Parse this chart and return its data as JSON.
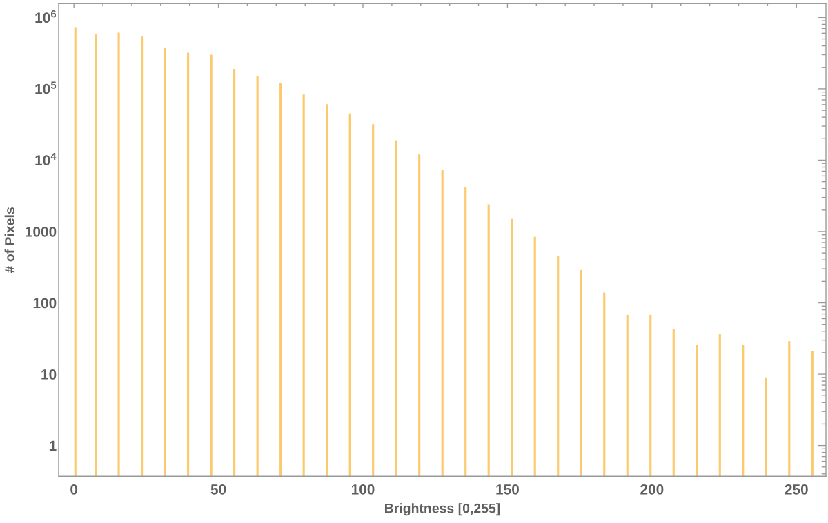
{
  "chart_data": {
    "type": "bar",
    "xlabel": "Brightness [0,255]",
    "ylabel": "# of Pixels",
    "log": true,
    "color": "#fbc96e",
    "x": [
      0.5,
      7.5,
      15.5,
      23.5,
      31.5,
      39.5,
      47.5,
      55.5,
      63.5,
      71.5,
      79.5,
      87.5,
      95.5,
      103.5,
      111.5,
      119.5,
      127.5,
      135.5,
      143.5,
      151.5,
      159.5,
      167.5,
      175.5,
      183.5,
      191.5,
      199.5,
      207.5,
      215.5,
      223.5,
      231.5,
      239.5,
      247.5,
      255.5
    ],
    "values": [
      730000,
      580000,
      610000,
      550000,
      370000,
      320000,
      300000,
      190000,
      150000,
      120000,
      83000,
      61000,
      45000,
      32000,
      19000,
      12000,
      7300,
      4200,
      2400,
      1500,
      840,
      450,
      290,
      140,
      68,
      68,
      43,
      26,
      37,
      26,
      9,
      29,
      21
    ],
    "xlim": [
      -5.3,
      260.2
    ],
    "xticks": [
      0,
      50,
      100,
      150,
      200,
      250,
      {
        "value": 10,
        "label": null
      },
      {
        "value": 20,
        "label": null
      },
      {
        "value": 30,
        "label": null
      },
      {
        "value": 40,
        "label": null
      },
      {
        "value": 60,
        "label": null
      },
      {
        "value": 70,
        "label": null
      },
      {
        "value": 80,
        "label": null
      },
      {
        "value": 90,
        "label": null
      },
      {
        "value": 110,
        "label": null
      },
      {
        "value": 120,
        "label": null
      },
      {
        "value": 130,
        "label": null
      },
      {
        "value": 140,
        "label": null
      },
      {
        "value": 160,
        "label": null
      },
      {
        "value": 170,
        "label": null
      },
      {
        "value": 180,
        "label": null
      },
      {
        "value": 190,
        "label": null
      },
      {
        "value": 210,
        "label": null
      },
      {
        "value": 220,
        "label": null
      },
      {
        "value": 230,
        "label": null
      },
      {
        "value": 240,
        "label": null
      }
    ],
    "ylim": [
      0.37,
      1560000
    ],
    "yticks": [
      1,
      10,
      100,
      1000,
      {
        "value": 10000,
        "label": "10$^{4}$"
      },
      {
        "value": 100000,
        "label": "10$^{5}$"
      },
      {
        "value": 1000000,
        "label": "10$^{6}$"
      },
      {
        "value": 0.4,
        "label": null
      },
      {
        "value": 0.5,
        "label": null
      },
      {
        "value": 0.6,
        "label": null
      },
      {
        "value": 0.7,
        "label": null
      },
      {
        "value": 0.8,
        "label": null
      },
      {
        "value": 0.9,
        "label": null
      },
      {
        "value": 2,
        "label": null
      },
      {
        "value": 3,
        "label": null
      },
      {
        "value": 4,
        "label": null
      },
      {
        "value": 5,
        "label": null
      },
      {
        "value": 6,
        "label": null
      },
      {
        "value": 7,
        "label": null
      },
      {
        "value": 8,
        "label": null
      },
      {
        "value": 9,
        "label": null
      },
      {
        "value": 20,
        "label": null
      },
      {
        "value": 30,
        "label": null
      },
      {
        "value": 40,
        "label": null
      },
      {
        "value": 50,
        "label": null
      },
      {
        "value": 60,
        "label": null
      },
      {
        "value": 70,
        "label": null
      },
      {
        "value": 80,
        "label": null
      },
      {
        "value": 90,
        "label": null
      },
      {
        "value": 200,
        "label": null
      },
      {
        "value": 300,
        "label": null
      },
      {
        "value": 400,
        "label": null
      },
      {
        "value": 500,
        "label": null
      },
      {
        "value": 600,
        "label": null
      },
      {
        "value": 700,
        "label": null
      },
      {
        "value": 800,
        "label": null
      },
      {
        "value": 900,
        "label": null
      },
      {
        "value": 2000,
        "label": null
      },
      {
        "value": 3000,
        "label": null
      },
      {
        "value": 4000,
        "label": null
      },
      {
        "value": 5000,
        "label": null
      },
      {
        "value": 6000,
        "label": null
      },
      {
        "value": 7000,
        "label": null
      },
      {
        "value": 8000,
        "label": null
      },
      {
        "value": 9000,
        "label": null
      },
      {
        "value": 20000,
        "label": null
      },
      {
        "value": 30000,
        "label": null
      },
      {
        "value": 40000,
        "label": null
      },
      {
        "value": 50000,
        "label": null
      },
      {
        "value": 60000,
        "label": null
      },
      {
        "value": 70000,
        "label": null
      },
      {
        "value": 80000,
        "label": null
      },
      {
        "value": 90000,
        "label": null
      },
      {
        "value": 200000,
        "label": null
      },
      {
        "value": 300000,
        "label": null
      },
      {
        "value": 400000,
        "label": null
      },
      {
        "value": 500000,
        "label": null
      },
      {
        "value": 600000,
        "label": null
      },
      {
        "value": 700000,
        "label": null
      },
      {
        "value": 800000,
        "label": null
      },
      {
        "value": 900000,
        "label": null
      }
    ]
  }
}
